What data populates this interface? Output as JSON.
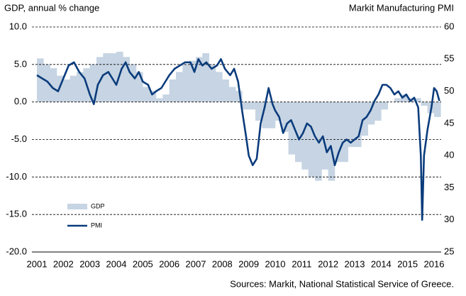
{
  "chart_data": {
    "type": "combo",
    "title": "GDP, annual % change",
    "y2_title": "Markit Manufacturing PMI",
    "source": "Sources: Markit, National Statistical Service of Greece.",
    "xlim": [
      2000.89,
      2016.21
    ],
    "xticks": [
      2001,
      2002,
      2003,
      2004,
      2005,
      2006,
      2007,
      2008,
      2009,
      2010,
      2011,
      2012,
      2013,
      2014,
      2015,
      2016
    ],
    "ylim": [
      -20,
      10
    ],
    "yticks": [
      {
        "value": -20,
        "label": "-20.0"
      },
      {
        "value": -15,
        "label": "-15.0"
      },
      {
        "value": -10,
        "label": "-10.0"
      },
      {
        "value": -5,
        "label": "-5.0"
      },
      {
        "value": 0,
        "label": "0.0"
      },
      {
        "value": 5,
        "label": "5.0"
      },
      {
        "value": 10,
        "label": "10.0"
      }
    ],
    "y2lim": [
      25,
      60
    ],
    "y2ticks": [
      25,
      30,
      35,
      40,
      45,
      50,
      55,
      60
    ],
    "grid": true,
    "legend": "lower left",
    "series": [
      {
        "name": "GDP",
        "type": "area",
        "color": "#c6d4e3",
        "step": 0.25,
        "x": [
          2001.0,
          2001.25,
          2001.5,
          2001.75,
          2002.0,
          2002.25,
          2002.5,
          2002.75,
          2003.0,
          2003.25,
          2003.5,
          2003.75,
          2004.0,
          2004.25,
          2004.5,
          2004.75,
          2005.0,
          2005.25,
          2005.5,
          2005.75,
          2006.0,
          2006.25,
          2006.5,
          2006.75,
          2007.0,
          2007.25,
          2007.5,
          2007.75,
          2008.0,
          2008.25,
          2008.5,
          2008.75,
          2009.0,
          2009.25,
          2009.5,
          2009.75,
          2010.0,
          2010.25,
          2010.5,
          2010.75,
          2011.0,
          2011.25,
          2011.5,
          2011.75,
          2012.0,
          2012.25,
          2012.5,
          2012.75,
          2013.0,
          2013.25,
          2013.5,
          2013.75,
          2014.0,
          2014.25,
          2014.5,
          2014.75,
          2015.0,
          2015.25,
          2015.5,
          2015.75,
          2016.0
        ],
        "values": [
          5.8,
          5.0,
          4.5,
          3.5,
          3.0,
          3.5,
          4.0,
          4.5,
          5.0,
          6.0,
          6.5,
          6.5,
          6.7,
          6.0,
          5.0,
          4.0,
          2.0,
          1.5,
          0.5,
          1.0,
          3.0,
          4.0,
          5.0,
          5.5,
          6.0,
          6.5,
          5.0,
          4.0,
          3.0,
          2.0,
          1.5,
          -1.0,
          -1.0,
          -2.5,
          -3.5,
          -3.5,
          -2.5,
          -4.0,
          -7.0,
          -8.0,
          -9.0,
          -10.0,
          -10.5,
          -9.0,
          -10.5,
          -8.0,
          -8.0,
          -6.0,
          -6.0,
          -4.5,
          -3.0,
          -2.5,
          -1.0,
          0.0,
          0.5,
          1.0,
          0.5,
          0.5,
          -0.5,
          -1.5,
          -2.0
        ]
      },
      {
        "name": "PMI",
        "type": "line",
        "axis": "y2",
        "color": "#0b3c7c",
        "x": [
          2001.0,
          2001.2,
          2001.4,
          2001.6,
          2001.8,
          2002.0,
          2002.2,
          2002.4,
          2002.6,
          2002.8,
          2003.0,
          2003.15,
          2003.3,
          2003.5,
          2003.7,
          2003.85,
          2004.0,
          2004.2,
          2004.35,
          2004.5,
          2004.7,
          2004.85,
          2005.0,
          2005.2,
          2005.35,
          2005.5,
          2005.7,
          2005.85,
          2006.0,
          2006.2,
          2006.4,
          2006.6,
          2006.8,
          2006.95,
          2007.1,
          2007.25,
          2007.4,
          2007.6,
          2007.8,
          2007.95,
          2008.1,
          2008.3,
          2008.45,
          2008.6,
          2008.75,
          2008.9,
          2009.0,
          2009.15,
          2009.3,
          2009.45,
          2009.6,
          2009.75,
          2009.9,
          2010.0,
          2010.15,
          2010.3,
          2010.45,
          2010.6,
          2010.75,
          2010.9,
          2011.05,
          2011.2,
          2011.35,
          2011.5,
          2011.65,
          2011.8,
          2011.95,
          2012.1,
          2012.25,
          2012.4,
          2012.55,
          2012.7,
          2012.85,
          2013.0,
          2013.15,
          2013.3,
          2013.45,
          2013.6,
          2013.75,
          2013.9,
          2014.05,
          2014.2,
          2014.35,
          2014.5,
          2014.65,
          2014.8,
          2014.95,
          2015.1,
          2015.25,
          2015.4,
          2015.5,
          2015.55,
          2015.62,
          2015.75,
          2015.9,
          2016.0,
          2016.1,
          2016.2
        ],
        "values": [
          52.5,
          52,
          51.5,
          50.5,
          50,
          52,
          54,
          54.5,
          53,
          52,
          49.5,
          48,
          51,
          52.5,
          53,
          52,
          51,
          53.5,
          54.5,
          53,
          52,
          53,
          51.5,
          51,
          49.5,
          50,
          50.5,
          51.5,
          52.5,
          53.5,
          54,
          54.5,
          54.5,
          53,
          55,
          54,
          54.5,
          53.5,
          54,
          55,
          53.5,
          52.5,
          53.5,
          51.5,
          47,
          43,
          40,
          38.5,
          39.5,
          45,
          47.5,
          50.5,
          48,
          47,
          46,
          43.5,
          45,
          45.5,
          44,
          42.5,
          43.5,
          45,
          44.5,
          43,
          42,
          43,
          40.5,
          41.5,
          38.5,
          40.5,
          42,
          42.5,
          42,
          42.5,
          43,
          45.5,
          46,
          47,
          48.5,
          49.5,
          51,
          51,
          50.5,
          49.5,
          50,
          49,
          49.5,
          48.5,
          49,
          47.5,
          40,
          30,
          40,
          44,
          47.5,
          50.5,
          50,
          48.5
        ]
      }
    ]
  }
}
